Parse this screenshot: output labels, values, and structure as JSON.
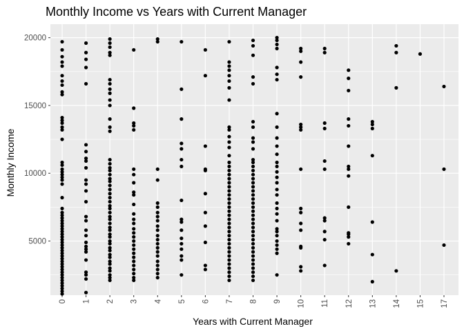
{
  "chart_data": {
    "type": "scatter",
    "title": "Monthly Income vs Years with Current Manager",
    "xlabel": "Years with Current Manager",
    "ylabel": "Monthly Income",
    "x_ticks": [
      "0",
      "1",
      "2",
      "3",
      "4",
      "5",
      "6",
      "7",
      "8",
      "9",
      "10",
      "11",
      "12",
      "13",
      "14",
      "15",
      "17"
    ],
    "y_ticks": [
      5000,
      10000,
      15000,
      20000
    ],
    "y_tick_labels": [
      "5000",
      "10000",
      "15000",
      "20000"
    ],
    "ylim": [
      1009,
      20999
    ],
    "x_rotated_tick_labels": true,
    "grid": true,
    "panel_background": "#ebebeb",
    "grid_color": "#ffffff",
    "point_color": "#000000",
    "points": [
      {
        "x": 0,
        "y": [
          19700,
          19100,
          18600,
          18200,
          17900,
          17200,
          16800,
          16500,
          16000,
          15800,
          14100,
          13900,
          13700,
          13400,
          13200,
          12500,
          10800,
          10600,
          10300,
          10100,
          9900,
          9700,
          9500,
          9200,
          8200,
          7400,
          7100,
          6900,
          6700,
          6500,
          6300,
          6100,
          5900,
          5700,
          5500,
          5300,
          5100,
          4900,
          4700,
          4500,
          4300,
          4100,
          3900,
          3700,
          3500,
          3300,
          3100,
          2900,
          2700,
          2500,
          2300,
          2100,
          1900,
          1700,
          1500,
          1300,
          1100
        ]
      },
      {
        "x": 1,
        "y": [
          19600,
          18900,
          18400,
          17800,
          16600,
          12100,
          11600,
          11100,
          10900,
          10400,
          9500,
          9200,
          8700,
          7900,
          6800,
          6500,
          5800,
          5400,
          4900,
          4600,
          4400,
          4200,
          3600,
          2700,
          2500,
          2200,
          1200
        ]
      },
      {
        "x": 2,
        "y": [
          19900,
          19600,
          19300,
          18900,
          18700,
          16900,
          16600,
          16200,
          15900,
          15400,
          15000,
          14000,
          13400,
          13100,
          11000,
          10700,
          10400,
          10200,
          9900,
          9600,
          9400,
          9100,
          8800,
          8500,
          8200,
          7900,
          7600,
          7400,
          7100,
          6800,
          6600,
          6300,
          6000,
          5800,
          5500,
          5300,
          5000,
          4800,
          4500,
          4300,
          4000,
          3800,
          3500,
          3300,
          3000,
          2800,
          2500,
          2300,
          2100
        ]
      },
      {
        "x": 3,
        "y": [
          19100,
          14800,
          13700,
          13500,
          13200,
          10300,
          9900,
          9300,
          8600,
          8400,
          7700,
          7000,
          6600,
          6300,
          5900,
          5600,
          5300,
          5000,
          4700,
          4400,
          4100,
          3800,
          3500,
          3200,
          2900,
          2600,
          2300,
          2100
        ]
      },
      {
        "x": 4,
        "y": [
          19900,
          19700,
          10300,
          9500,
          7800,
          7500,
          7100,
          6800,
          6500,
          6100,
          5800,
          5400,
          5100,
          4800,
          4500,
          4200,
          3900,
          3500,
          3200,
          2900,
          2600,
          2300
        ]
      },
      {
        "x": 5,
        "y": [
          19700,
          16200,
          14000,
          12200,
          11800,
          11000,
          10500,
          8000,
          6600,
          6400,
          5800,
          5200,
          4800,
          4400,
          3900,
          3600,
          2500
        ]
      },
      {
        "x": 6,
        "y": [
          19100,
          17200,
          12000,
          10300,
          10200,
          8500,
          7100,
          6100,
          4900,
          3200,
          2900
        ]
      },
      {
        "x": 7,
        "y": [
          19700,
          18200,
          17900,
          17600,
          17200,
          16800,
          16300,
          15400,
          13400,
          13200,
          12700,
          12300,
          11900,
          11300,
          10800,
          10500,
          10200,
          9900,
          9600,
          9300,
          9000,
          8700,
          8400,
          8100,
          7800,
          7500,
          7200,
          6900,
          6600,
          6300,
          6000,
          5700,
          5400,
          5100,
          4800,
          4500,
          4200,
          3900,
          3600,
          3300,
          3000,
          2700,
          2400,
          2100
        ]
      },
      {
        "x": 8,
        "y": [
          19800,
          19400,
          18700,
          17100,
          16600,
          13800,
          13400,
          12600,
          12300,
          11800,
          11000,
          10800,
          10500,
          10200,
          9900,
          9600,
          9300,
          9000,
          8700,
          8400,
          8100,
          7800,
          7500,
          7200,
          6900,
          6600,
          6300,
          6000,
          5700,
          5400,
          5100,
          4800,
          4500,
          4200,
          3900,
          3600,
          3300,
          3000,
          2700,
          2400,
          2100
        ]
      },
      {
        "x": 9,
        "y": [
          20000,
          19800,
          19500,
          19200,
          17800,
          17300,
          16900,
          14400,
          13400,
          12600,
          12000,
          11400,
          10800,
          10500,
          10100,
          9700,
          9300,
          8800,
          8400,
          7800,
          7400,
          7000,
          6500,
          5900,
          5700,
          5400,
          5000,
          4700,
          4400,
          4100,
          2500
        ]
      },
      {
        "x": 10,
        "y": [
          19200,
          19000,
          18200,
          17100,
          13600,
          13400,
          13200,
          10300,
          7400,
          7100,
          6300,
          5800,
          4600,
          4500,
          3100,
          2800
        ]
      },
      {
        "x": 11,
        "y": [
          19200,
          18900,
          13700,
          13300,
          10900,
          10300,
          6700,
          6500,
          5700,
          5100,
          3200
        ]
      },
      {
        "x": 12,
        "y": [
          17600,
          17000,
          16100,
          14000,
          13500,
          12000,
          10500,
          10300,
          9800,
          7500,
          5600,
          5500,
          5300,
          4800
        ]
      },
      {
        "x": 13,
        "y": [
          13800,
          13600,
          13300,
          11300,
          6400,
          4000,
          2000
        ]
      },
      {
        "x": 14,
        "y": [
          19400,
          18900,
          16300,
          2800
        ]
      },
      {
        "x": 15,
        "y": [
          18800
        ]
      },
      {
        "x": 17,
        "y": [
          16400,
          10300,
          4700
        ]
      }
    ]
  }
}
